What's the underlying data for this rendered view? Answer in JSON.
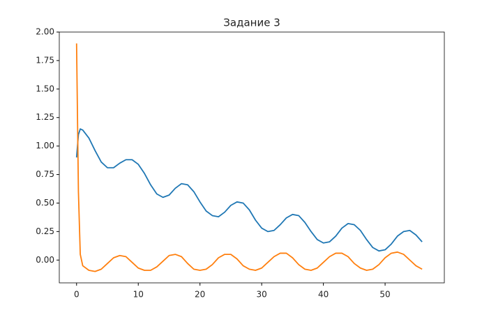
{
  "chart_data": {
    "type": "line",
    "title": "Задание 3",
    "x": [
      0,
      0.3,
      0.6,
      1,
      2,
      3,
      4,
      5,
      6,
      7,
      8,
      9,
      10,
      11,
      12,
      13,
      14,
      15,
      16,
      17,
      18,
      19,
      20,
      21,
      22,
      23,
      24,
      25,
      26,
      27,
      28,
      29,
      30,
      31,
      32,
      33,
      34,
      35,
      36,
      37,
      38,
      39,
      40,
      41,
      42,
      43,
      44,
      45,
      46,
      47,
      48,
      49,
      50,
      51,
      52,
      53,
      54,
      55,
      56
    ],
    "series": [
      {
        "color": "#1f77b4",
        "values": [
          0.9,
          1.1,
          1.15,
          1.14,
          1.07,
          0.96,
          0.86,
          0.81,
          0.81,
          0.85,
          0.88,
          0.88,
          0.84,
          0.76,
          0.66,
          0.58,
          0.55,
          0.57,
          0.63,
          0.67,
          0.66,
          0.6,
          0.51,
          0.43,
          0.39,
          0.38,
          0.42,
          0.48,
          0.51,
          0.5,
          0.44,
          0.35,
          0.28,
          0.25,
          0.26,
          0.31,
          0.37,
          0.4,
          0.39,
          0.33,
          0.25,
          0.18,
          0.15,
          0.16,
          0.21,
          0.28,
          0.32,
          0.31,
          0.26,
          0.18,
          0.11,
          0.08,
          0.09,
          0.14,
          0.21,
          0.25,
          0.26,
          0.22,
          0.16
        ]
      },
      {
        "color": "#ff7f0e",
        "values": [
          1.9,
          0.6,
          0.05,
          -0.05,
          -0.09,
          -0.1,
          -0.08,
          -0.03,
          0.02,
          0.04,
          0.03,
          -0.02,
          -0.07,
          -0.09,
          -0.09,
          -0.06,
          -0.01,
          0.04,
          0.05,
          0.03,
          -0.03,
          -0.08,
          -0.09,
          -0.08,
          -0.04,
          0.02,
          0.05,
          0.05,
          0.01,
          -0.05,
          -0.08,
          -0.09,
          -0.07,
          -0.02,
          0.03,
          0.06,
          0.06,
          0.02,
          -0.04,
          -0.08,
          -0.09,
          -0.07,
          -0.02,
          0.03,
          0.06,
          0.06,
          0.03,
          -0.03,
          -0.07,
          -0.09,
          -0.08,
          -0.04,
          0.02,
          0.06,
          0.07,
          0.05,
          0.0,
          -0.05,
          -0.08
        ]
      }
    ],
    "xlim": [
      -2.8,
      59.6
    ],
    "ylim": [
      -0.2,
      2.0
    ],
    "xticks": [
      0,
      10,
      20,
      30,
      40,
      50
    ],
    "yticks": [
      {
        "value": 0,
        "label": "0.00"
      },
      {
        "value": 0.25,
        "label": "0.25"
      },
      {
        "value": 0.5,
        "label": "0.50"
      },
      {
        "value": 0.75,
        "label": "0.75"
      },
      {
        "value": 1,
        "label": "1.00"
      },
      {
        "value": 1.25,
        "label": "1.25"
      },
      {
        "value": 1.5,
        "label": "1.50"
      },
      {
        "value": 1.75,
        "label": "1.75"
      },
      {
        "value": 2,
        "label": "2.00"
      }
    ],
    "grid": false
  }
}
